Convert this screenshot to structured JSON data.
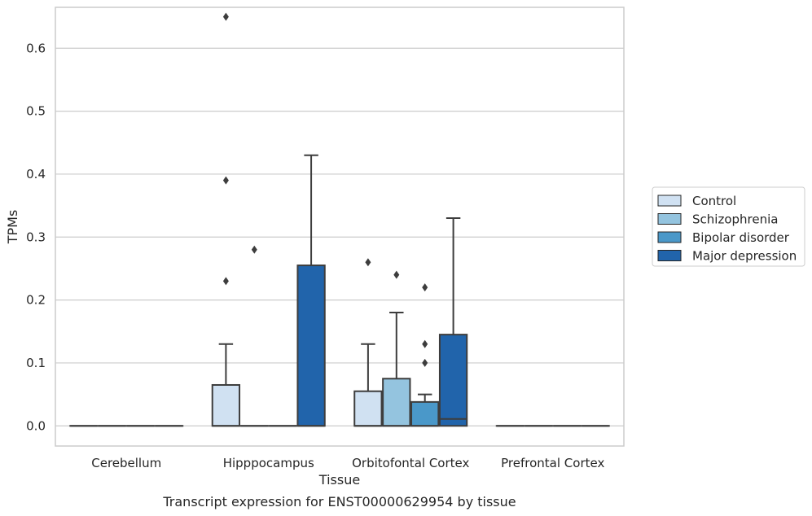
{
  "chart_data": {
    "type": "box",
    "xlabel": "Tissue",
    "ylabel": "TPMs",
    "caption": "Transcript expression for ENST00000629954 by tissue",
    "categories": [
      "Cerebellum",
      "Hipppocampus",
      "Orbitofontal Cortex",
      "Prefrontal Cortex"
    ],
    "ylim": [
      -0.032,
      0.665
    ],
    "yticks": [
      {
        "value": 0.0,
        "label": "0.0"
      },
      {
        "value": 0.1,
        "label": "0.1"
      },
      {
        "value": 0.2,
        "label": "0.2"
      },
      {
        "value": 0.3,
        "label": "0.3"
      },
      {
        "value": 0.4,
        "label": "0.4"
      },
      {
        "value": 0.5,
        "label": "0.5"
      },
      {
        "value": 0.6,
        "label": "0.6"
      }
    ],
    "grid": true,
    "legend_position": "right",
    "series": [
      {
        "name": "Control",
        "color": "#d0e1f2",
        "boxes": [
          {
            "q1": 0,
            "median": 0,
            "q3": 0,
            "whislo": 0,
            "whishi": 0,
            "fliers": []
          },
          {
            "q1": 0,
            "median": 0,
            "q3": 0.065,
            "whislo": 0,
            "whishi": 0.13,
            "fliers": [
              0.23,
              0.39,
              0.65
            ]
          },
          {
            "q1": 0,
            "median": 0,
            "q3": 0.055,
            "whislo": 0,
            "whishi": 0.13,
            "fliers": [
              0.26
            ]
          },
          {
            "q1": 0,
            "median": 0,
            "q3": 0,
            "whislo": 0,
            "whishi": 0,
            "fliers": []
          }
        ]
      },
      {
        "name": "Schizophrenia",
        "color": "#94c4df",
        "boxes": [
          {
            "q1": 0,
            "median": 0,
            "q3": 0,
            "whislo": 0,
            "whishi": 0,
            "fliers": []
          },
          {
            "q1": 0,
            "median": 0,
            "q3": 0,
            "whislo": 0,
            "whishi": 0,
            "fliers": [
              0.28
            ]
          },
          {
            "q1": 0,
            "median": 0,
            "q3": 0.075,
            "whislo": 0,
            "whishi": 0.18,
            "fliers": [
              0.24
            ]
          },
          {
            "q1": 0,
            "median": 0,
            "q3": 0,
            "whislo": 0,
            "whishi": 0,
            "fliers": []
          }
        ]
      },
      {
        "name": "Bipolar disorder",
        "color": "#4a98c9",
        "boxes": [
          {
            "q1": 0,
            "median": 0,
            "q3": 0,
            "whislo": 0,
            "whishi": 0,
            "fliers": []
          },
          {
            "q1": 0,
            "median": 0,
            "q3": 0,
            "whislo": 0,
            "whishi": 0,
            "fliers": []
          },
          {
            "q1": 0,
            "median": 0,
            "q3": 0.038,
            "whislo": 0,
            "whishi": 0.05,
            "fliers": [
              0.1,
              0.13,
              0.22
            ]
          },
          {
            "q1": 0,
            "median": 0,
            "q3": 0,
            "whislo": 0,
            "whishi": 0,
            "fliers": []
          }
        ]
      },
      {
        "name": "Major depression",
        "color": "#2164ab",
        "boxes": [
          {
            "q1": 0,
            "median": 0,
            "q3": 0,
            "whislo": 0,
            "whishi": 0,
            "fliers": []
          },
          {
            "q1": 0,
            "median": 0,
            "q3": 0.255,
            "whislo": 0,
            "whishi": 0.43,
            "fliers": []
          },
          {
            "q1": 0,
            "median": 0.011,
            "q3": 0.145,
            "whislo": 0,
            "whishi": 0.33,
            "fliers": []
          },
          {
            "q1": 0,
            "median": 0,
            "q3": 0,
            "whislo": 0,
            "whishi": 0,
            "fliers": []
          }
        ]
      }
    ]
  }
}
